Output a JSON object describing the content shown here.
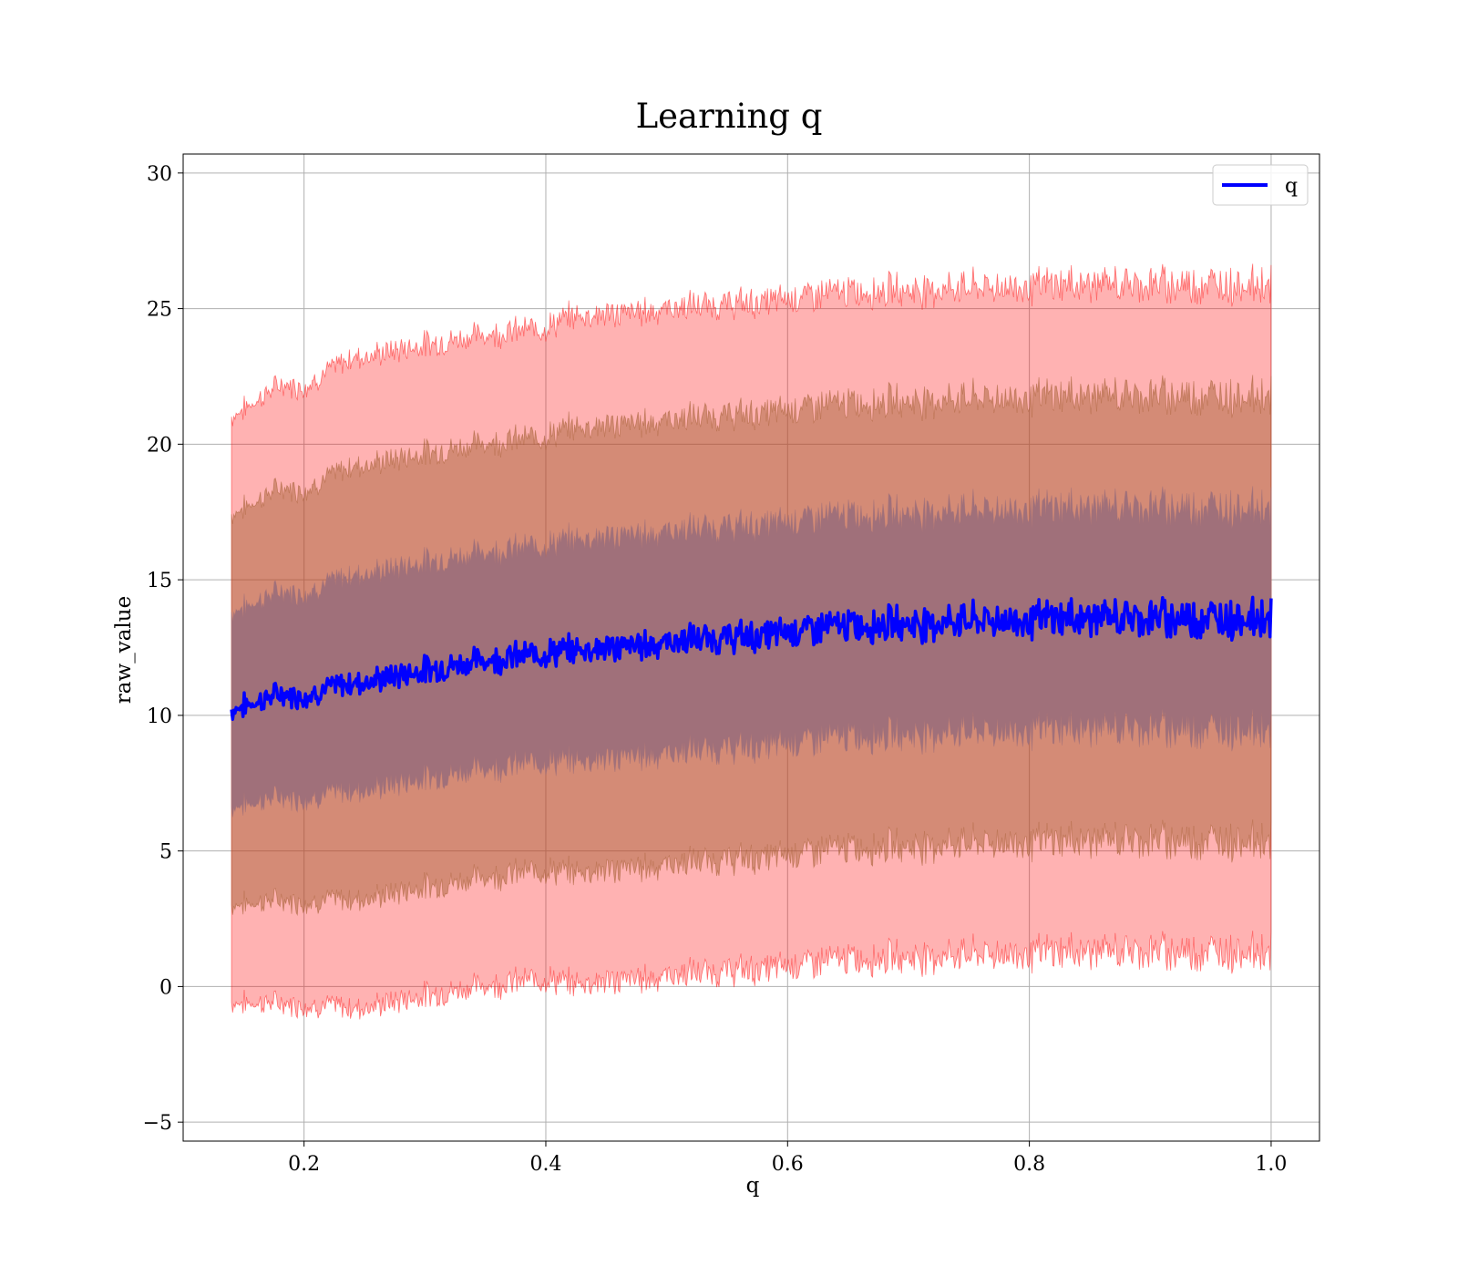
{
  "chart_data": {
    "type": "line",
    "title": "Learning q",
    "xlabel": "q",
    "ylabel": "raw_value",
    "xlim": [
      0.1,
      1.04
    ],
    "ylim": [
      -5.7,
      30.7
    ],
    "x_ticks": [
      0.2,
      0.4,
      0.6,
      0.8,
      1.0
    ],
    "x_tick_labels": [
      "0.2",
      "0.4",
      "0.6",
      "0.8",
      "1.0"
    ],
    "y_ticks": [
      -5,
      0,
      5,
      10,
      15,
      20,
      25,
      30
    ],
    "y_tick_labels": [
      "−5",
      "0",
      "5",
      "10",
      "15",
      "20",
      "25",
      "30"
    ],
    "grid": true,
    "legend": {
      "position": "top-right",
      "entries": [
        "q"
      ]
    },
    "colors": {
      "mean_line": "#0000ff",
      "band_3sd": "#ff0000",
      "band_2sd": "#a05a2c",
      "band_1sd": "#7a2e5a",
      "inner_fill": "#a0707a"
    },
    "series": [
      {
        "name": "q",
        "x": [
          0.14,
          0.16,
          0.18,
          0.2,
          0.22,
          0.24,
          0.26,
          0.28,
          0.3,
          0.32,
          0.34,
          0.36,
          0.38,
          0.4,
          0.42,
          0.44,
          0.46,
          0.48,
          0.5,
          0.52,
          0.54,
          0.56,
          0.58,
          0.6,
          0.62,
          0.64,
          0.66,
          0.68,
          0.7,
          0.72,
          0.74,
          0.76,
          0.78,
          0.8,
          0.82,
          0.84,
          0.86,
          0.88,
          0.9,
          0.92,
          0.94,
          0.96,
          0.98,
          1.0
        ],
        "values": [
          10.2,
          10.5,
          10.8,
          10.7,
          11.0,
          11.2,
          11.3,
          11.5,
          11.7,
          11.8,
          12.0,
          12.1,
          12.2,
          12.3,
          12.4,
          12.5,
          12.5,
          12.6,
          12.7,
          12.8,
          12.8,
          12.9,
          12.9,
          13.1,
          13.2,
          13.3,
          13.3,
          13.4,
          13.4,
          13.4,
          13.5,
          13.5,
          13.5,
          13.5,
          13.6,
          13.6,
          13.6,
          13.6,
          13.6,
          13.6,
          13.6,
          13.6,
          13.6,
          13.6
        ],
        "std": [
          3.6,
          3.7,
          3.8,
          3.8,
          3.9,
          4.0,
          4.0,
          4.0,
          4.0,
          4.0,
          4.0,
          4.0,
          4.0,
          4.0,
          4.1,
          4.1,
          4.1,
          4.1,
          4.1,
          4.1,
          4.1,
          4.1,
          4.1,
          4.1,
          4.1,
          4.1,
          4.1,
          4.1,
          4.1,
          4.1,
          4.1,
          4.1,
          4.1,
          4.1,
          4.1,
          4.1,
          4.1,
          4.1,
          4.1,
          4.1,
          4.1,
          4.1,
          4.1,
          4.1
        ]
      }
    ]
  }
}
